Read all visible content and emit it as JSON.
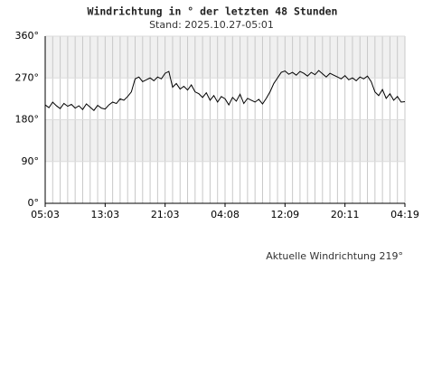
{
  "chart_data": {
    "type": "line",
    "title": "Windrichtung in ° der letzten 48 Stunden",
    "subtitle": "Stand: 2025.10.27-05:01",
    "annotation": "Aktuelle Windrichtung 219°",
    "x": [
      0,
      0.5,
      1,
      1.5,
      2,
      2.5,
      3,
      3.5,
      4,
      4.5,
      5,
      5.5,
      6,
      6.5,
      7,
      7.5,
      8,
      8.5,
      9,
      9.5,
      10,
      10.5,
      11,
      11.5,
      12,
      12.5,
      13,
      13.5,
      14,
      14.5,
      15,
      15.5,
      16,
      16.5,
      17,
      17.5,
      18,
      18.5,
      19,
      19.5,
      20,
      20.5,
      21,
      21.5,
      22,
      22.5,
      23,
      23.5,
      24,
      24.5,
      25,
      25.5,
      26,
      26.5,
      27,
      27.5,
      28,
      28.5,
      29,
      29.5,
      30,
      30.5,
      31,
      31.5,
      32,
      32.5,
      33,
      33.5,
      34,
      34.5,
      35,
      35.5,
      36,
      36.5,
      37,
      37.5,
      38,
      38.5,
      39,
      39.5,
      40,
      40.5,
      41,
      41.5,
      42,
      42.5,
      43,
      43.5,
      44,
      44.5,
      45,
      45.5,
      46,
      46.5,
      47,
      47.5,
      48
    ],
    "series": [
      {
        "color": "#000000",
        "values": [
          212,
          206,
          218,
          210,
          204,
          215,
          209,
          213,
          205,
          210,
          202,
          214,
          207,
          200,
          211,
          205,
          203,
          212,
          218,
          215,
          225,
          222,
          230,
          240,
          268,
          272,
          262,
          266,
          270,
          264,
          272,
          268,
          280,
          284,
          250,
          258,
          246,
          252,
          244,
          255,
          240,
          236,
          228,
          238,
          222,
          232,
          218,
          230,
          225,
          212,
          228,
          220,
          235,
          215,
          226,
          222,
          218,
          224,
          214,
          226,
          240,
          258,
          270,
          282,
          285,
          278,
          282,
          276,
          284,
          280,
          274,
          282,
          277,
          286,
          279,
          272,
          280,
          276,
          272,
          268,
          275,
          266,
          270,
          264,
          272,
          268,
          274,
          262,
          240,
          232,
          245,
          226,
          236,
          222,
          230,
          218,
          219
        ]
      }
    ],
    "xlim": [
      0,
      48
    ],
    "xticks": [
      {
        "value": 0,
        "label": "05:03"
      },
      {
        "value": 8,
        "label": "13:03"
      },
      {
        "value": 16,
        "label": "21:03"
      },
      {
        "value": 24,
        "label": "04:08"
      },
      {
        "value": 32,
        "label": "12:09"
      },
      {
        "value": 40,
        "label": "20:11"
      },
      {
        "value": 48,
        "label": "04:19"
      }
    ],
    "ylim": [
      0,
      360
    ],
    "yticks": [
      {
        "value": 0,
        "label": "0°"
      },
      {
        "value": 90,
        "label": "90°"
      },
      {
        "value": 180,
        "label": "180°"
      },
      {
        "value": 270,
        "label": "270°"
      },
      {
        "value": 360,
        "label": "360°"
      }
    ],
    "grid": true
  }
}
